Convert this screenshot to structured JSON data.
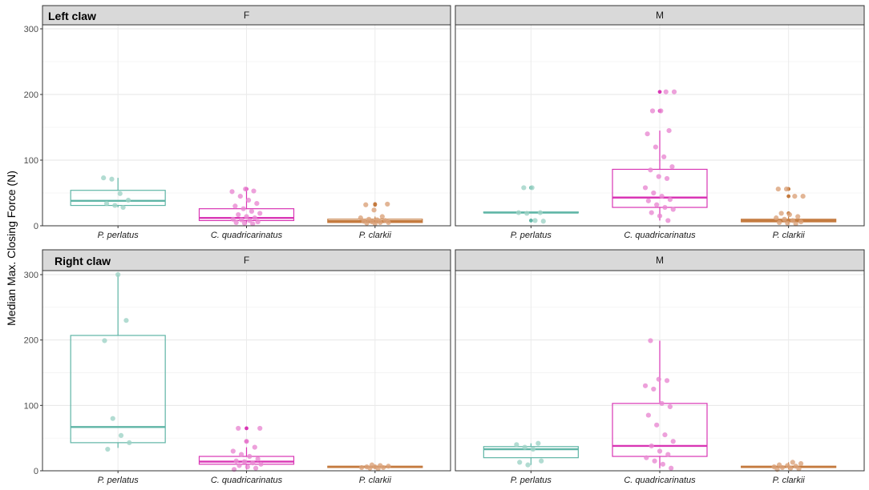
{
  "chart_data": {
    "type": "boxplot",
    "ylabel": "Median Max. Closing Force (N)",
    "ylim": [
      0,
      305
    ],
    "yticks": [
      0,
      100,
      200,
      300
    ],
    "categories": [
      "P. perlatus",
      "C. quadricarinatus",
      "P. clarkii"
    ],
    "colors": {
      "P. perlatus": "#5fb5a6",
      "C. quadricarinatus": "#d936b5",
      "P. clarkii": "#c47a3e"
    },
    "fill_colors": {
      "P. perlatus": "#9fd3c7",
      "C. quadricarinatus": "#e98ad2",
      "P. clarkii": "#dba27a"
    },
    "rows": [
      {
        "title": "Left claw"
      },
      {
        "title": "Right claw"
      }
    ],
    "panels": [
      {
        "row": 0,
        "col": 0,
        "strip": "F",
        "groups": [
          {
            "category": "P. perlatus",
            "q1": 31,
            "median": 38,
            "q3": 54,
            "whisker_low": 28,
            "whisker_high": 73,
            "outliers": [],
            "points": [
              73,
              71,
              49,
              39,
              34,
              31,
              28
            ]
          },
          {
            "category": "C. quadricarinatus",
            "q1": 8,
            "median": 12,
            "q3": 26,
            "whisker_low": 3,
            "whisker_high": 56,
            "outliers": [
              56
            ],
            "points": [
              56,
              53,
              52,
              45,
              39,
              34,
              30,
              26,
              22,
              19,
              17,
              14,
              12,
              10,
              9,
              8,
              6,
              5,
              4,
              3
            ]
          },
          {
            "category": "P. clarkii",
            "q1": 5,
            "median": 7,
            "q3": 10,
            "whisker_low": 3,
            "whisker_high": 14,
            "outliers": [
              33,
              32
            ],
            "points": [
              33,
              32,
              24,
              14,
              12,
              10,
              9,
              8,
              7,
              6,
              5,
              5,
              4,
              3
            ]
          }
        ]
      },
      {
        "row": 0,
        "col": 1,
        "strip": "M",
        "groups": [
          {
            "category": "P. perlatus",
            "q1": 20,
            "median": 20,
            "q3": 21,
            "whisker_low": 20,
            "whisker_high": 21,
            "outliers": [
              58,
              8
            ],
            "points": [
              58,
              58,
              20,
              20,
              19,
              8,
              7
            ]
          },
          {
            "category": "C. quadricarinatus",
            "q1": 28,
            "median": 43,
            "q3": 86,
            "whisker_low": 8,
            "whisker_high": 145,
            "outliers": [
              204,
              175
            ],
            "points": [
              204,
              204,
              175,
              175,
              145,
              140,
              120,
              105,
              90,
              85,
              75,
              72,
              58,
              50,
              45,
              40,
              38,
              32,
              28,
              25,
              20,
              15,
              8
            ]
          },
          {
            "category": "P. clarkii",
            "q1": 6,
            "median": 8,
            "q3": 10,
            "whisker_low": 3,
            "whisker_high": 14,
            "outliers": [
              56,
              45,
              19
            ],
            "points": [
              56,
              56,
              45,
              45,
              19,
              17,
              14,
              12,
              10,
              8,
              6,
              5,
              4,
              3
            ]
          }
        ]
      },
      {
        "row": 1,
        "col": 0,
        "strip": "F",
        "groups": [
          {
            "category": "P. perlatus",
            "q1": 43,
            "median": 67,
            "q3": 207,
            "whisker_low": 35,
            "whisker_high": 300,
            "outliers": [],
            "points": [
              300,
              230,
              199,
              80,
              54,
              43,
              33
            ]
          },
          {
            "category": "C. quadricarinatus",
            "q1": 10,
            "median": 14,
            "q3": 22,
            "whisker_low": 2,
            "whisker_high": 36,
            "outliers": [
              65,
              45
            ],
            "points": [
              65,
              65,
              45,
              36,
              30,
              25,
              22,
              18,
              15,
              14,
              12,
              10,
              8,
              6,
              4,
              2
            ]
          },
          {
            "category": "P. clarkii",
            "q1": 5,
            "median": 6,
            "q3": 7,
            "whisker_low": 3,
            "whisker_high": 9,
            "outliers": [],
            "points": [
              9,
              8,
              7,
              6,
              6,
              5,
              5,
              4,
              3
            ]
          }
        ]
      },
      {
        "row": 1,
        "col": 1,
        "strip": "M",
        "groups": [
          {
            "category": "P. perlatus",
            "q1": 20,
            "median": 33,
            "q3": 37,
            "whisker_low": 9,
            "whisker_high": 42,
            "outliers": [],
            "points": [
              42,
              40,
              36,
              33,
              15,
              13,
              9
            ]
          },
          {
            "category": "C. quadricarinatus",
            "q1": 22,
            "median": 38,
            "q3": 103,
            "whisker_low": 4,
            "whisker_high": 199,
            "outliers": [],
            "points": [
              199,
              140,
              138,
              130,
              125,
              103,
              98,
              85,
              70,
              55,
              45,
              38,
              30,
              25,
              20,
              15,
              10,
              4
            ]
          },
          {
            "category": "P. clarkii",
            "q1": 5,
            "median": 6,
            "q3": 7,
            "whisker_low": 2,
            "whisker_high": 13,
            "outliers": [],
            "points": [
              13,
              11,
              9,
              8,
              7,
              6,
              5,
              4,
              3,
              2
            ]
          }
        ]
      }
    ]
  }
}
